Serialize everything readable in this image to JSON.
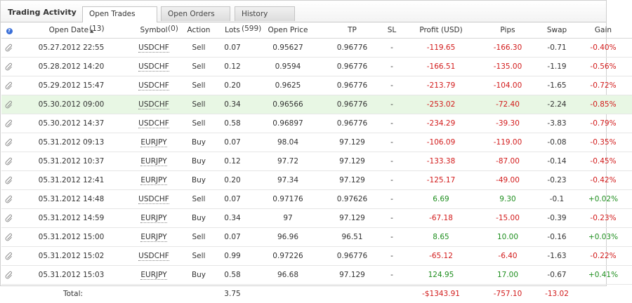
{
  "app": {
    "title": "Trading Activity"
  },
  "tabs": [
    {
      "label": "Open Trades (13)",
      "active": true
    },
    {
      "label": "Open Orders (0)",
      "active": false
    },
    {
      "label": "History (599)",
      "active": false
    }
  ],
  "table": {
    "help_icon": "?",
    "columns": [
      "Open Date",
      "Symbol",
      "Action",
      "Lots",
      "Open Price",
      "TP",
      "SL",
      "Profit (USD)",
      "Pips",
      "Swap",
      "Gain"
    ],
    "sort_indicator": "▲",
    "rows": [
      {
        "date": "05.27.2012 22:55",
        "symbol": "USDCHF",
        "action": "Sell",
        "lots": "0.07",
        "open_price": "0.95627",
        "tp": "0.96776",
        "sl": "-",
        "profit": "-119.65",
        "pips": "-166.30",
        "swap": "-0.71",
        "gain": "-0.40%"
      },
      {
        "date": "05.28.2012 14:20",
        "symbol": "USDCHF",
        "action": "Sell",
        "lots": "0.12",
        "open_price": "0.9594",
        "tp": "0.96776",
        "sl": "-",
        "profit": "-166.51",
        "pips": "-135.00",
        "swap": "-1.19",
        "gain": "-0.56%"
      },
      {
        "date": "05.29.2012 15:47",
        "symbol": "USDCHF",
        "action": "Sell",
        "lots": "0.20",
        "open_price": "0.9625",
        "tp": "0.96776",
        "sl": "-",
        "profit": "-213.79",
        "pips": "-104.00",
        "swap": "-1.65",
        "gain": "-0.72%"
      },
      {
        "date": "05.30.2012 09:00",
        "symbol": "USDCHF",
        "action": "Sell",
        "lots": "0.34",
        "open_price": "0.96566",
        "tp": "0.96776",
        "sl": "-",
        "profit": "-253.02",
        "pips": "-72.40",
        "swap": "-2.24",
        "gain": "-0.85%",
        "highlight": true
      },
      {
        "date": "05.30.2012 14:37",
        "symbol": "USDCHF",
        "action": "Sell",
        "lots": "0.58",
        "open_price": "0.96897",
        "tp": "0.96776",
        "sl": "-",
        "profit": "-234.29",
        "pips": "-39.30",
        "swap": "-3.83",
        "gain": "-0.79%"
      },
      {
        "date": "05.31.2012 09:13",
        "symbol": "EURJPY",
        "action": "Buy",
        "lots": "0.07",
        "open_price": "98.04",
        "tp": "97.129",
        "sl": "-",
        "profit": "-106.09",
        "pips": "-119.00",
        "swap": "-0.08",
        "gain": "-0.35%"
      },
      {
        "date": "05.31.2012 10:37",
        "symbol": "EURJPY",
        "action": "Buy",
        "lots": "0.12",
        "open_price": "97.72",
        "tp": "97.129",
        "sl": "-",
        "profit": "-133.38",
        "pips": "-87.00",
        "swap": "-0.14",
        "gain": "-0.45%"
      },
      {
        "date": "05.31.2012 12:41",
        "symbol": "EURJPY",
        "action": "Buy",
        "lots": "0.20",
        "open_price": "97.34",
        "tp": "97.129",
        "sl": "-",
        "profit": "-125.17",
        "pips": "-49.00",
        "swap": "-0.23",
        "gain": "-0.42%"
      },
      {
        "date": "05.31.2012 14:48",
        "symbol": "USDCHF",
        "action": "Sell",
        "lots": "0.07",
        "open_price": "0.97176",
        "tp": "0.97626",
        "sl": "-",
        "profit": "6.69",
        "pips": "9.30",
        "swap": "-0.1",
        "gain": "+0.02%"
      },
      {
        "date": "05.31.2012 14:59",
        "symbol": "EURJPY",
        "action": "Buy",
        "lots": "0.34",
        "open_price": "97",
        "tp": "97.129",
        "sl": "-",
        "profit": "-67.18",
        "pips": "-15.00",
        "swap": "-0.39",
        "gain": "-0.23%"
      },
      {
        "date": "05.31.2012 15:00",
        "symbol": "EURJPY",
        "action": "Sell",
        "lots": "0.07",
        "open_price": "96.96",
        "tp": "96.51",
        "sl": "-",
        "profit": "8.65",
        "pips": "10.00",
        "swap": "-0.16",
        "gain": "+0.03%"
      },
      {
        "date": "05.31.2012 15:02",
        "symbol": "USDCHF",
        "action": "Sell",
        "lots": "0.99",
        "open_price": "0.97226",
        "tp": "0.96776",
        "sl": "-",
        "profit": "-65.12",
        "pips": "-6.40",
        "swap": "-1.63",
        "gain": "-0.22%"
      },
      {
        "date": "05.31.2012 15:03",
        "symbol": "EURJPY",
        "action": "Buy",
        "lots": "0.58",
        "open_price": "96.68",
        "tp": "97.129",
        "sl": "-",
        "profit": "124.95",
        "pips": "17.00",
        "swap": "-0.67",
        "gain": "+0.41%"
      }
    ],
    "total": {
      "label": "Total:",
      "lots": "3.75",
      "profit": "-$1343.91",
      "pips": "-757.10",
      "swap": "-13.02"
    }
  },
  "colors": {
    "negative": "#d21a1a",
    "positive": "#1e8e1e",
    "highlight_row": "#e8f7e4"
  },
  "icons": {
    "row_icon": "paperclip-icon",
    "help_icon": "help-icon"
  }
}
